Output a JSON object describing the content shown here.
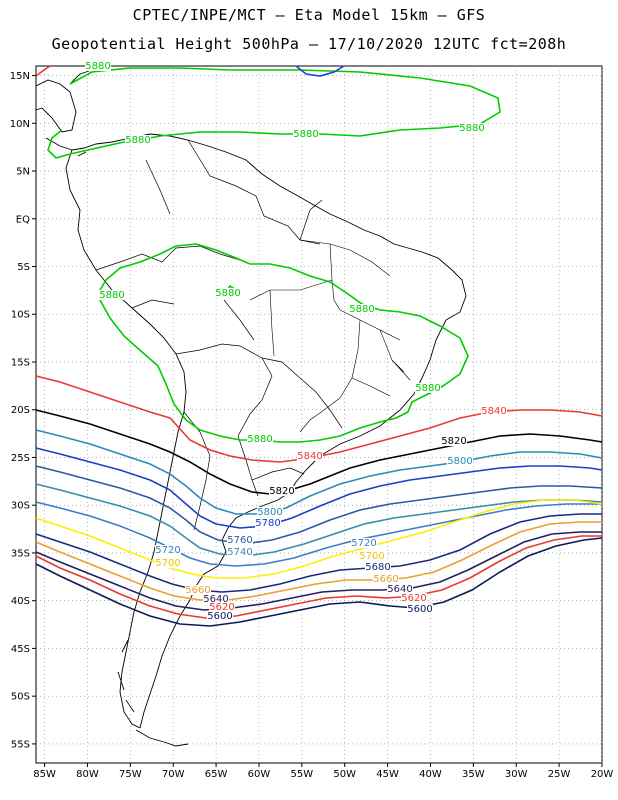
{
  "title_line1": "CPTEC/INPE/MCT –  Eta Model 15km – GFS",
  "title_line2": "Geopotential Height 500hPa – 17/10/2020 12UTC fct=208h",
  "axes": {
    "lat_ticks": [
      "15N",
      "10N",
      "5N",
      "EQ",
      "5S",
      "10S",
      "15S",
      "20S",
      "25S",
      "30S",
      "35S",
      "40S",
      "45S",
      "50S",
      "55S"
    ],
    "lon_ticks": [
      "85W",
      "80W",
      "75W",
      "70W",
      "65W",
      "60W",
      "55W",
      "50W",
      "45W",
      "40W",
      "35W",
      "30W",
      "25W",
      "20W"
    ],
    "lat_range": [
      16,
      -57
    ],
    "lon_range": [
      -86,
      -20
    ]
  },
  "colors": {
    "c5880": "#00cc00",
    "c5840": "#e8392e",
    "c5820": "#000000",
    "c5800": "#2a8ab8",
    "c5780": "#1a3ec8",
    "c5760": "#2c5aa0",
    "c5740": "#3a8ab0",
    "c5720": "#3b7ec8",
    "c5700": "#ffee00",
    "c5680": "#1a2a80",
    "c5660": "#e8a030",
    "c5640": "#202060",
    "c5620": "#e8392e",
    "c5600": "#0a1a5a",
    "c5860": "#2040e0"
  },
  "contour_labels": [
    {
      "text": "5880",
      "color": "#00cc00"
    },
    {
      "text": "5880",
      "color": "#00cc00"
    },
    {
      "text": "5880",
      "color": "#00cc00"
    },
    {
      "text": "5880",
      "color": "#00cc00"
    },
    {
      "text": "5880",
      "color": "#00cc00"
    },
    {
      "text": "5880",
      "color": "#00cc00"
    },
    {
      "text": "5880",
      "color": "#00cc00"
    },
    {
      "text": "5880",
      "color": "#00cc00"
    },
    {
      "text": "5880",
      "color": "#00cc00"
    },
    {
      "text": "5880",
      "color": "#00cc00"
    },
    {
      "text": "5840",
      "color": "#e8392e"
    },
    {
      "text": "5840",
      "color": "#e8392e"
    },
    {
      "text": "5820",
      "color": "#000000"
    },
    {
      "text": "5820",
      "color": "#000000"
    },
    {
      "text": "5800",
      "color": "#2a8ab8"
    },
    {
      "text": "5800",
      "color": "#2a8ab8"
    },
    {
      "text": "5780",
      "color": "#1a3ec8"
    },
    {
      "text": "5760",
      "color": "#2c5aa0"
    },
    {
      "text": "5740",
      "color": "#3a8ab0"
    },
    {
      "text": "5720",
      "color": "#3b7ec8"
    },
    {
      "text": "5720",
      "color": "#3b7ec8"
    },
    {
      "text": "5700",
      "color": "#e8c800"
    },
    {
      "text": "5700",
      "color": "#e8c800"
    },
    {
      "text": "5680",
      "color": "#1a2a80"
    },
    {
      "text": "5660",
      "color": "#e8a030"
    },
    {
      "text": "5660",
      "color": "#e8a030"
    },
    {
      "text": "5640",
      "color": "#202060"
    },
    {
      "text": "5640",
      "color": "#202060"
    },
    {
      "text": "5620",
      "color": "#e8392e"
    },
    {
      "text": "5620",
      "color": "#e8392e"
    },
    {
      "text": "5600",
      "color": "#0a1a5a"
    },
    {
      "text": "5600",
      "color": "#0a1a5a"
    }
  ]
}
